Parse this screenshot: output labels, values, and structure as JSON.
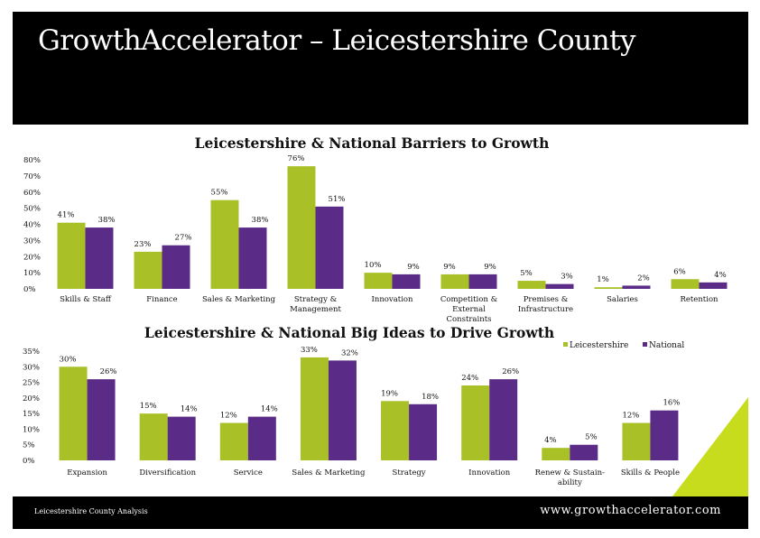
{
  "slide": {
    "title": "GrowthAccelerator – Leicestershire County",
    "footer_left": "Leicestershire County Analysis",
    "footer_right": "www.growthaccelerator.com"
  },
  "colors": {
    "leicestershire": "#a9c027",
    "national": "#5b2c87",
    "accent": "#c8dc1e"
  },
  "chart_data": [
    {
      "type": "bar",
      "title": "Leicestershire & National Barriers to Growth",
      "categories": [
        "Skills & Staff",
        "Finance",
        "Sales & Marketing",
        "Strategy & Management",
        "Innovation",
        "Competition & External Constraints",
        "Premises & Infrastructure",
        "Salaries",
        "Retention"
      ],
      "category_lines": [
        [
          "Skills & Staff"
        ],
        [
          "Finance"
        ],
        [
          "Sales & Marketing"
        ],
        [
          "Strategy &",
          "Management"
        ],
        [
          "Innovation"
        ],
        [
          "Competition &",
          "External",
          "Constraints"
        ],
        [
          "Premises &",
          "Infrastructure"
        ],
        [
          "Salaries"
        ],
        [
          "Retention"
        ]
      ],
      "series": [
        {
          "name": "Leicestershire",
          "values": [
            41,
            23,
            55,
            76,
            10,
            9,
            5,
            1,
            6
          ]
        },
        {
          "name": "National",
          "values": [
            38,
            27,
            38,
            51,
            9,
            9,
            3,
            2,
            4
          ]
        }
      ],
      "ylim": [
        0,
        80
      ],
      "yticks": [
        "0%",
        "10%",
        "20%",
        "30%",
        "40%",
        "50%",
        "60%",
        "70%",
        "80%"
      ],
      "xlabel": "",
      "ylabel": "",
      "grid": false
    },
    {
      "type": "bar",
      "title": "Leicestershire & National Big Ideas to Drive Growth",
      "categories": [
        "Expansion",
        "Diversification",
        "Service",
        "Sales & Marketing",
        "Strategy",
        "Innovation",
        "Renew & Sustain-ability",
        "Skills & People"
      ],
      "category_lines": [
        [
          "Expansion"
        ],
        [
          "Diversification"
        ],
        [
          "Service"
        ],
        [
          "Sales & Marketing"
        ],
        [
          "Strategy"
        ],
        [
          "Innovation"
        ],
        [
          "Renew & Sustain-",
          "ability"
        ],
        [
          "Skills & People"
        ]
      ],
      "series": [
        {
          "name": "Leicestershire",
          "values": [
            30,
            15,
            12,
            33,
            19,
            24,
            4,
            12
          ]
        },
        {
          "name": "National",
          "values": [
            26,
            14,
            14,
            32,
            18,
            26,
            5,
            16
          ]
        }
      ],
      "ylim": [
        0,
        35
      ],
      "yticks": [
        "0%",
        "5%",
        "10%",
        "15%",
        "20%",
        "25%",
        "30%",
        "35%"
      ],
      "legend": {
        "position": "top-right",
        "entries": [
          "Leicestershire",
          "National"
        ]
      },
      "xlabel": "",
      "ylabel": "",
      "grid": false
    }
  ]
}
